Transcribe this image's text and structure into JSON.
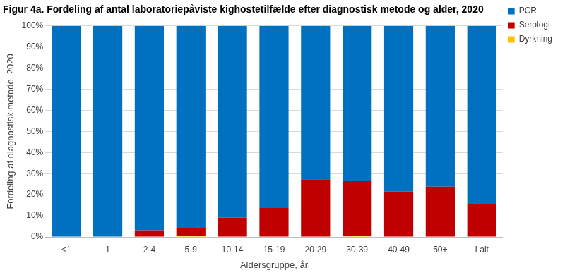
{
  "chart_data": {
    "type": "bar",
    "title": "Figur 4a. Fordeling af antal laboratoriepåviste kighostetilfælde efter diagnostisk metode og alder, 2020",
    "xlabel": "Aldersgruppe, år",
    "ylabel": "Fordeling af diagnostisk metode, 2020",
    "categories": [
      "<1",
      "1",
      "2-4",
      "5-9",
      "10-14",
      "15-19",
      "20-29",
      "30-39",
      "40-49",
      "50+",
      "I alt"
    ],
    "series": [
      {
        "name": "PCR",
        "color": "#0070C0",
        "values": [
          100,
          100,
          96.8,
          96,
          90.8,
          86.3,
          72.7,
          73.5,
          78.5,
          76.2,
          84.5
        ]
      },
      {
        "name": "Serologi",
        "color": "#C00000",
        "values": [
          0,
          0,
          3.2,
          3.5,
          9.2,
          13.7,
          27.3,
          26,
          21.5,
          23.8,
          15.5
        ]
      },
      {
        "name": "Dyrkning",
        "color": "#FFC000",
        "values": [
          0,
          0,
          0,
          0.5,
          0,
          0,
          0,
          0.5,
          0,
          0,
          0
        ]
      }
    ],
    "stacked": true,
    "ylim": [
      0,
      100
    ],
    "yticks": [
      {
        "value": 0,
        "label": "0%"
      },
      {
        "value": 10,
        "label": "10%"
      },
      {
        "value": 20,
        "label": "20%"
      },
      {
        "value": 30,
        "label": "30%"
      },
      {
        "value": 40,
        "label": "40%"
      },
      {
        "value": 50,
        "label": "50%"
      },
      {
        "value": 60,
        "label": "60%"
      },
      {
        "value": 70,
        "label": "70%"
      },
      {
        "value": 80,
        "label": "80%"
      },
      {
        "value": 90,
        "label": "90%"
      },
      {
        "value": 100,
        "label": "100%"
      }
    ],
    "grid": true,
    "legend": "right"
  }
}
